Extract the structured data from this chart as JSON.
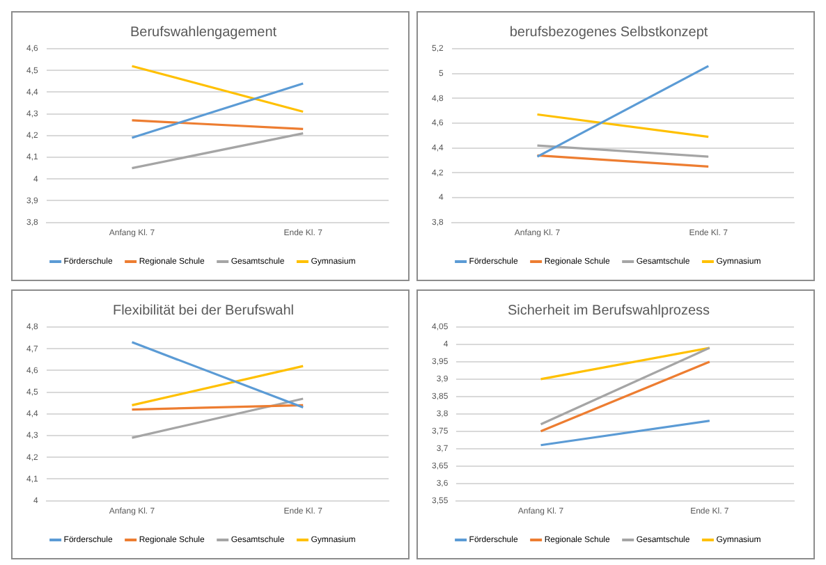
{
  "chart_data": [
    {
      "type": "line",
      "title": "Berufswahlengagement",
      "categories": [
        "Anfang Kl. 7",
        "Ende Kl. 7"
      ],
      "series": [
        {
          "name": "Förderschule",
          "color": "#5b9bd5",
          "values": [
            4.19,
            4.44
          ]
        },
        {
          "name": "Regionale Schule",
          "color": "#ed7d31",
          "values": [
            4.27,
            4.23
          ]
        },
        {
          "name": "Gesamtschule",
          "color": "#a5a5a5",
          "values": [
            4.05,
            4.21
          ]
        },
        {
          "name": "Gymnasium",
          "color": "#ffc000",
          "values": [
            4.52,
            4.31
          ]
        }
      ],
      "ylim": [
        3.8,
        4.6
      ],
      "yticks": [
        {
          "value": 3.8,
          "label": "3,8"
        },
        {
          "value": 3.9,
          "label": "3,9"
        },
        {
          "value": 4,
          "label": "4"
        },
        {
          "value": 4.1,
          "label": "4,1"
        },
        {
          "value": 4.2,
          "label": "4,2"
        },
        {
          "value": 4.3,
          "label": "4,3"
        },
        {
          "value": 4.4,
          "label": "4,4"
        },
        {
          "value": 4.5,
          "label": "4,5"
        },
        {
          "value": 4.6,
          "label": "4,6"
        }
      ],
      "grid": "y",
      "legend": "bottom",
      "marker": "none",
      "line_style": "solid"
    },
    {
      "type": "line",
      "title": "berufsbezogenes Selbstkonzept",
      "categories": [
        "Anfang Kl. 7",
        "Ende Kl. 7"
      ],
      "series": [
        {
          "name": "Förderschule",
          "color": "#5b9bd5",
          "values": [
            4.33,
            5.06
          ]
        },
        {
          "name": "Regionale Schule",
          "color": "#ed7d31",
          "values": [
            4.34,
            4.25
          ]
        },
        {
          "name": "Gesamtschule",
          "color": "#a5a5a5",
          "values": [
            4.42,
            4.33
          ]
        },
        {
          "name": "Gymnasium",
          "color": "#ffc000",
          "values": [
            4.67,
            4.49
          ]
        }
      ],
      "ylim": [
        3.8,
        5.2
      ],
      "yticks": [
        {
          "value": 3.8,
          "label": "3,8"
        },
        {
          "value": 4,
          "label": "4"
        },
        {
          "value": 4.2,
          "label": "4,2"
        },
        {
          "value": 4.4,
          "label": "4,4"
        },
        {
          "value": 4.6,
          "label": "4,6"
        },
        {
          "value": 4.8,
          "label": "4,8"
        },
        {
          "value": 5,
          "label": "5"
        },
        {
          "value": 5.2,
          "label": "5,2"
        }
      ],
      "grid": "y",
      "legend": "bottom",
      "marker": "none",
      "line_style": "solid"
    },
    {
      "type": "line",
      "title": "Flexibilität bei der Berufswahl",
      "categories": [
        "Anfang Kl. 7",
        "Ende Kl. 7"
      ],
      "series": [
        {
          "name": "Förderschule",
          "color": "#5b9bd5",
          "values": [
            4.73,
            4.43
          ]
        },
        {
          "name": "Regionale Schule",
          "color": "#ed7d31",
          "values": [
            4.42,
            4.44
          ]
        },
        {
          "name": "Gesamtschule",
          "color": "#a5a5a5",
          "values": [
            4.29,
            4.47
          ]
        },
        {
          "name": "Gymnasium",
          "color": "#ffc000",
          "values": [
            4.44,
            4.62
          ]
        }
      ],
      "ylim": [
        4,
        4.8
      ],
      "yticks": [
        {
          "value": 4,
          "label": "4"
        },
        {
          "value": 4.1,
          "label": "4,1"
        },
        {
          "value": 4.2,
          "label": "4,2"
        },
        {
          "value": 4.3,
          "label": "4,3"
        },
        {
          "value": 4.4,
          "label": "4,4"
        },
        {
          "value": 4.5,
          "label": "4,5"
        },
        {
          "value": 4.6,
          "label": "4,6"
        },
        {
          "value": 4.7,
          "label": "4,7"
        },
        {
          "value": 4.8,
          "label": "4,8"
        }
      ],
      "grid": "y",
      "legend": "bottom",
      "marker": "none",
      "line_style": "solid"
    },
    {
      "type": "line",
      "title": "Sicherheit im Berufswahlprozess",
      "categories": [
        "Anfang Kl. 7",
        "Ende Kl. 7"
      ],
      "series": [
        {
          "name": "Förderschule",
          "color": "#5b9bd5",
          "values": [
            3.71,
            3.78
          ]
        },
        {
          "name": "Regionale Schule",
          "color": "#ed7d31",
          "values": [
            3.75,
            3.95
          ]
        },
        {
          "name": "Gesamtschule",
          "color": "#a5a5a5",
          "values": [
            3.77,
            3.99
          ]
        },
        {
          "name": "Gymnasium",
          "color": "#ffc000",
          "values": [
            3.9,
            3.99
          ]
        }
      ],
      "ylim": [
        3.55,
        4.05
      ],
      "yticks": [
        {
          "value": 3.55,
          "label": "3,55"
        },
        {
          "value": 3.6,
          "label": "3,6"
        },
        {
          "value": 3.65,
          "label": "3,65"
        },
        {
          "value": 3.7,
          "label": "3,7"
        },
        {
          "value": 3.75,
          "label": "3,75"
        },
        {
          "value": 3.8,
          "label": "3,8"
        },
        {
          "value": 3.85,
          "label": "3,85"
        },
        {
          "value": 3.9,
          "label": "3,9"
        },
        {
          "value": 3.95,
          "label": "3,95"
        },
        {
          "value": 4,
          "label": "4"
        },
        {
          "value": 4.05,
          "label": "4,05"
        }
      ],
      "grid": "y",
      "legend": "bottom",
      "marker": "none",
      "line_style": "solid"
    }
  ]
}
